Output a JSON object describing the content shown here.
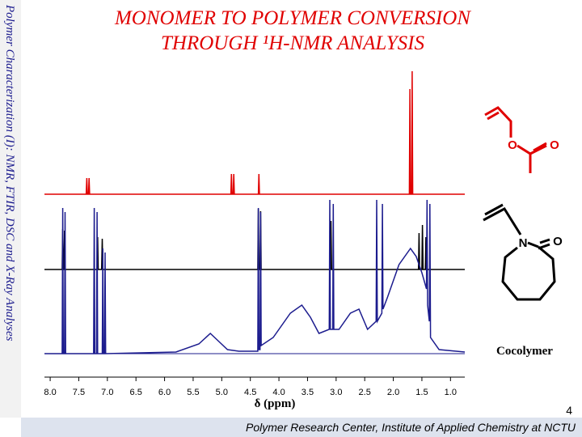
{
  "sidebar": "Polymer Characterization (I): NMR, FTIR, DSC and X-Ray Analyses",
  "title": [
    "MONOMER TO POLYMER CONVERSION",
    "THROUGH ¹H-NMR ANALYSIS"
  ],
  "footer": "Polymer Research Center, Institute of Applied Chemistry at NCTU",
  "page_number": "4",
  "structure_labels": [
    "O",
    "O",
    "N",
    "O"
  ],
  "chart_data": {
    "type": "line",
    "x_label": "δ (ppm)",
    "annotations": [
      "Cocolymer"
    ],
    "xlim": [
      8.1,
      0.75
    ],
    "ylim": [
      0,
      200
    ],
    "xticks": [
      {
        "value": 8,
        "label": "8.0"
      },
      7.5,
      {
        "value": 7,
        "label": "7.0"
      },
      6.5,
      {
        "value": 6,
        "label": "6.0"
      },
      5.5,
      {
        "value": 5,
        "label": "5.0"
      },
      4.5,
      {
        "value": 4,
        "label": "4.0"
      },
      3.5,
      {
        "value": 3,
        "label": "3.0"
      },
      2.5,
      {
        "value": 2,
        "label": "2.0"
      },
      1.5,
      {
        "value": 1,
        "label": "1.0"
      }
    ],
    "series": [
      {
        "color": "#e00000",
        "x": [
          8.1,
          7.37,
          7.36,
          7.35,
          7.33,
          7.32,
          7.31,
          4.84,
          4.83,
          4.82,
          4.8,
          4.79,
          4.78,
          4.36,
          4.35,
          4.34,
          1.72,
          1.71,
          1.7,
          1.68,
          1.67,
          1.66,
          0.75
        ],
        "values": [
          0,
          0,
          20,
          0,
          0,
          20,
          0,
          0,
          25,
          0,
          0,
          25,
          0,
          0,
          25,
          0,
          0,
          130,
          0,
          0,
          152,
          0,
          0
        ]
      },
      {
        "color": "#000000",
        "x": [
          8.1,
          7.79,
          7.78,
          7.77,
          7.76,
          7.75,
          7.74,
          7.18,
          7.17,
          7.16,
          7.1,
          7.09,
          7.08,
          4.37,
          4.36,
          4.35,
          4.33,
          4.32,
          4.31,
          3.1,
          3.09,
          3.08,
          1.56,
          1.55,
          1.54,
          1.5,
          1.49,
          1.48,
          1.44,
          1.43,
          1.42,
          0.75
        ],
        "values": [
          0,
          0,
          50,
          0,
          0,
          48,
          0,
          0,
          40,
          0,
          0,
          38,
          0,
          0,
          75,
          0,
          0,
          72,
          0,
          0,
          60,
          0,
          0,
          45,
          0,
          0,
          55,
          0,
          0,
          40,
          0,
          0
        ]
      },
      {
        "color": "#1c1c8e",
        "x": [
          8.1,
          7.79,
          7.78,
          7.77,
          7.75,
          7.74,
          7.73,
          7.24,
          7.23,
          7.22,
          7.19,
          7.18,
          7.17,
          7.09,
          7.08,
          7.07,
          7.05,
          7.04,
          7.03,
          5.8,
          5.4,
          5.2,
          5.05,
          4.9,
          4.7,
          4.37,
          4.36,
          4.35,
          4.33,
          4.32,
          4.31,
          4.1,
          3.8,
          3.6,
          3.45,
          3.3,
          3.12,
          3.11,
          3.1,
          3.06,
          3.05,
          3.04,
          2.95,
          2.75,
          2.6,
          2.45,
          2.3,
          2.29,
          2.28,
          2.2,
          2.19,
          2.18,
          2.1,
          1.9,
          1.7,
          1.6,
          1.5,
          1.42,
          1.41,
          1.4,
          1.37,
          1.36,
          1.35,
          1.2,
          0.9,
          0.75
        ],
        "values": [
          0,
          0,
          180,
          0,
          0,
          175,
          0,
          0,
          180,
          0,
          0,
          175,
          0,
          0,
          130,
          0,
          0,
          125,
          0,
          2,
          12,
          25,
          15,
          5,
          3,
          3,
          180,
          5,
          5,
          175,
          10,
          20,
          50,
          60,
          45,
          25,
          30,
          190,
          30,
          30,
          185,
          30,
          30,
          50,
          55,
          30,
          40,
          190,
          40,
          50,
          185,
          55,
          70,
          110,
          130,
          120,
          100,
          80,
          190,
          60,
          40,
          185,
          20,
          5,
          3,
          2
        ]
      }
    ]
  }
}
